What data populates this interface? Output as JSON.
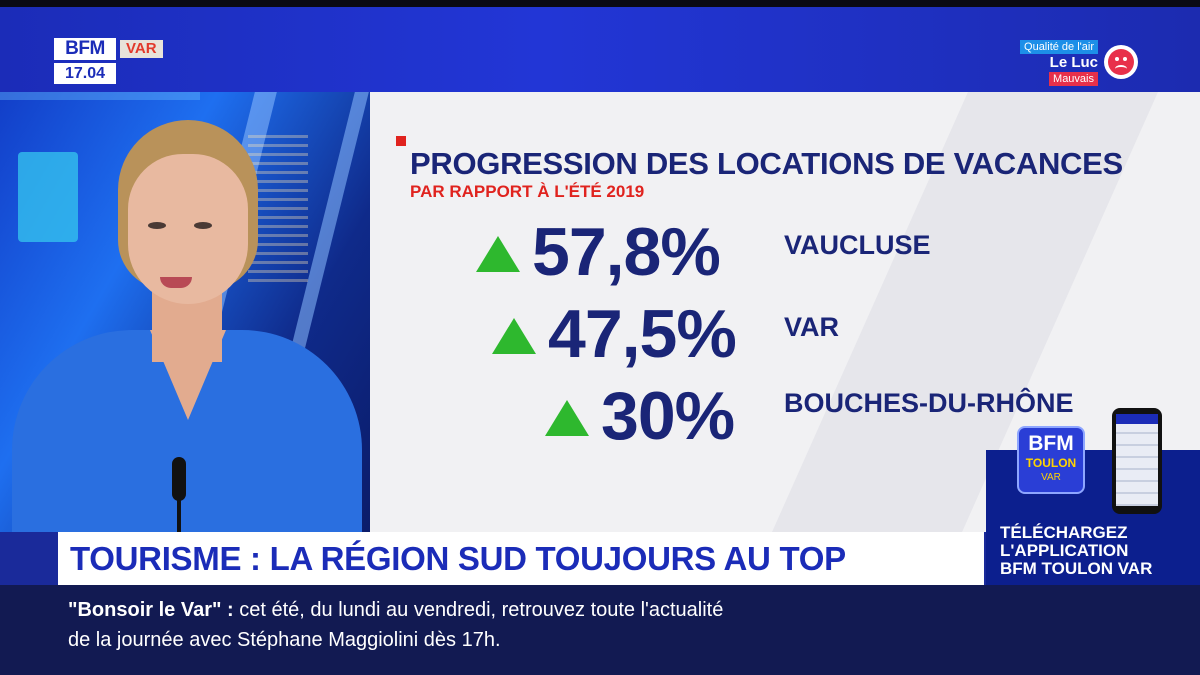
{
  "channel": {
    "logo": "BFM",
    "region": "VAR",
    "time": "17.04"
  },
  "air_quality": {
    "title": "Qualité de l'air",
    "place": "Le Luc",
    "status": "Mauvais",
    "icon": "sad-face-icon",
    "status_color": "#e8304a"
  },
  "infographic": {
    "title": "PROGRESSION DES LOCATIONS DE VACANCES",
    "subtitle": "PAR RAPPORT À L'ÉTÉ 2019",
    "rows": [
      {
        "value": "57,8%",
        "department": "VAUCLUSE",
        "trend": "up"
      },
      {
        "value": "47,5%",
        "department": "VAR",
        "trend": "up"
      },
      {
        "value": "30%",
        "department": "BOUCHES-DU-RHÔNE",
        "trend": "up"
      }
    ],
    "accent": "#1a2577",
    "up_color": "#2eb82e"
  },
  "promo": {
    "logo_text": "BFM",
    "logo_sub1": "TOULON",
    "logo_sub2": "VAR",
    "lines": [
      "TÉLÉCHARGEZ",
      "L'APPLICATION",
      "BFM TOULON VAR"
    ]
  },
  "headline": "TOURISME : LA RÉGION SUD TOUJOURS AU TOP",
  "ticker": {
    "program": "\"Bonsoir le Var\" :",
    "line1_rest": " cet été, du lundi au vendredi, retrouvez toute l'actualité",
    "line2": "de la journée avec Stéphane Maggiolini dès 17h."
  }
}
